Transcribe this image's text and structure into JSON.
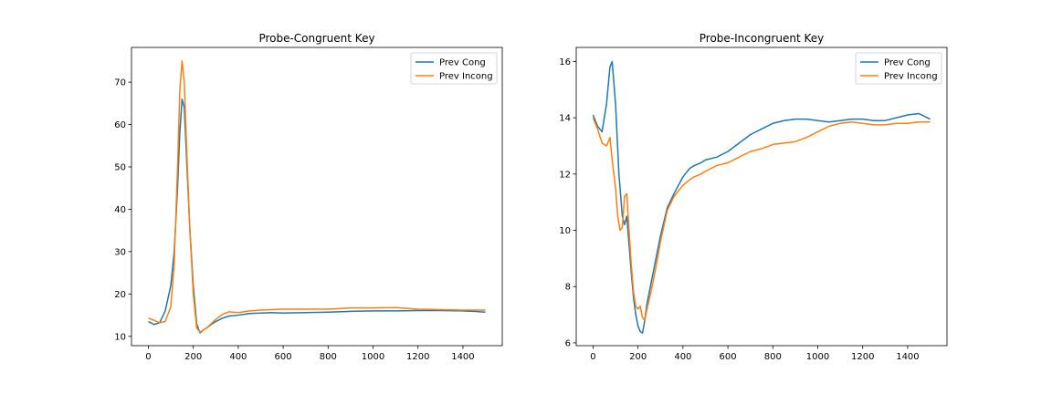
{
  "chart_data": [
    {
      "type": "line",
      "title": "Probe-Congruent Key",
      "xlabel": "",
      "ylabel": "",
      "xlim": [
        -75,
        1575
      ],
      "ylim": [
        7.8,
        78.2
      ],
      "xticks": [
        0,
        200,
        400,
        600,
        800,
        1000,
        1200,
        1400
      ],
      "yticks": [
        10,
        20,
        30,
        40,
        50,
        60,
        70
      ],
      "legend_position": "top-right",
      "grid": false,
      "series": [
        {
          "name": "Prev Cong",
          "color": "#1f77b4",
          "x": [
            0,
            25,
            50,
            75,
            100,
            115,
            130,
            140,
            150,
            160,
            170,
            185,
            200,
            215,
            230,
            245,
            260,
            280,
            300,
            330,
            360,
            400,
            450,
            500,
            550,
            600,
            700,
            800,
            900,
            1000,
            1100,
            1200,
            1300,
            1400,
            1450,
            1500
          ],
          "y": [
            13.5,
            12.8,
            13.2,
            16.0,
            22.0,
            30.0,
            45.0,
            58.0,
            66.0,
            64.0,
            52.0,
            35.0,
            22.0,
            13.0,
            10.8,
            11.5,
            12.0,
            12.8,
            13.5,
            14.3,
            14.8,
            15.0,
            15.4,
            15.5,
            15.6,
            15.5,
            15.6,
            15.7,
            15.9,
            16.0,
            16.0,
            16.1,
            16.1,
            16.0,
            15.9,
            15.7
          ]
        },
        {
          "name": "Prev Incong",
          "color": "#ff7f0e",
          "x": [
            0,
            25,
            50,
            75,
            100,
            115,
            130,
            140,
            150,
            160,
            170,
            185,
            200,
            215,
            230,
            245,
            260,
            280,
            300,
            330,
            360,
            400,
            450,
            500,
            550,
            600,
            700,
            800,
            900,
            1000,
            1100,
            1200,
            1300,
            1400,
            1450,
            1500
          ],
          "y": [
            14.3,
            13.8,
            13.2,
            13.5,
            17.0,
            27.0,
            50.0,
            68.0,
            75.0,
            70.0,
            55.0,
            35.0,
            20.0,
            12.0,
            11.0,
            11.5,
            12.0,
            13.0,
            14.0,
            15.2,
            15.8,
            15.6,
            16.0,
            16.2,
            16.3,
            16.4,
            16.4,
            16.4,
            16.7,
            16.7,
            16.8,
            16.4,
            16.3,
            16.2,
            16.2,
            16.2
          ]
        }
      ]
    },
    {
      "type": "line",
      "title": "Probe-Incongruent Key",
      "xlabel": "",
      "ylabel": "",
      "xlim": [
        -75,
        1575
      ],
      "ylim": [
        5.9,
        16.5
      ],
      "xticks": [
        0,
        200,
        400,
        600,
        800,
        1000,
        1200,
        1400
      ],
      "yticks": [
        6,
        8,
        10,
        12,
        14,
        16
      ],
      "legend_position": "top-right",
      "grid": false,
      "series": [
        {
          "name": "Prev Cong",
          "color": "#1f77b4",
          "x": [
            0,
            20,
            40,
            60,
            75,
            85,
            100,
            115,
            130,
            140,
            150,
            160,
            170,
            180,
            190,
            200,
            210,
            220,
            230,
            240,
            260,
            280,
            300,
            330,
            360,
            400,
            430,
            450,
            480,
            500,
            550,
            600,
            650,
            700,
            750,
            800,
            850,
            900,
            950,
            1000,
            1050,
            1100,
            1150,
            1200,
            1250,
            1300,
            1350,
            1400,
            1450,
            1500
          ],
          "y": [
            14.1,
            13.7,
            13.5,
            14.5,
            15.8,
            16.0,
            14.5,
            12.0,
            10.5,
            10.2,
            10.5,
            9.5,
            8.5,
            7.6,
            7.0,
            6.6,
            6.4,
            6.35,
            6.8,
            7.4,
            8.2,
            9.0,
            9.8,
            10.8,
            11.3,
            11.9,
            12.2,
            12.3,
            12.4,
            12.5,
            12.6,
            12.8,
            13.1,
            13.4,
            13.6,
            13.8,
            13.9,
            13.95,
            13.95,
            13.9,
            13.85,
            13.9,
            13.95,
            13.95,
            13.9,
            13.9,
            14.0,
            14.1,
            14.15,
            13.95
          ]
        },
        {
          "name": "Prev Incong",
          "color": "#ff7f0e",
          "x": [
            0,
            20,
            40,
            60,
            75,
            85,
            100,
            110,
            120,
            130,
            140,
            150,
            160,
            170,
            180,
            190,
            200,
            210,
            220,
            230,
            240,
            260,
            280,
            300,
            330,
            360,
            400,
            430,
            450,
            480,
            500,
            550,
            600,
            650,
            700,
            750,
            800,
            850,
            900,
            950,
            1000,
            1050,
            1100,
            1150,
            1200,
            1250,
            1300,
            1350,
            1400,
            1450,
            1500
          ],
          "y": [
            14.0,
            13.6,
            13.1,
            13.0,
            13.3,
            12.5,
            11.5,
            10.5,
            10.0,
            10.1,
            11.2,
            11.3,
            10.0,
            8.8,
            7.8,
            7.3,
            7.2,
            7.3,
            6.9,
            6.8,
            7.2,
            7.9,
            8.7,
            9.6,
            10.7,
            11.2,
            11.6,
            11.8,
            11.9,
            12.0,
            12.1,
            12.3,
            12.4,
            12.6,
            12.8,
            12.9,
            13.05,
            13.1,
            13.15,
            13.3,
            13.5,
            13.7,
            13.8,
            13.85,
            13.8,
            13.75,
            13.75,
            13.8,
            13.8,
            13.85,
            13.85
          ]
        }
      ]
    }
  ]
}
